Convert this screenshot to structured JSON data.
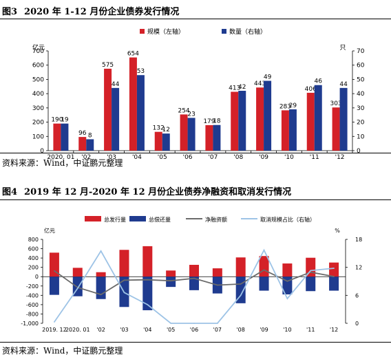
{
  "figure1": {
    "number": "图3",
    "title": "2020 年 1-12 月份企业债券发行情况",
    "source": "资料来源：Wind，中证鹏元整理"
  },
  "figure2": {
    "number": "图4",
    "title": "2019 年 12 月-2020 年 12 月份企业债券净融资和取消发行情况",
    "source": "资料来源：Wind，中证鹏元整理"
  },
  "colors": {
    "red": "#d42128",
    "navy": "#1f3b8f",
    "gray": "#6b6b6b",
    "lightblue": "#9dc3e6"
  },
  "chart_data": [
    {
      "type": "bar",
      "title": "",
      "categories": [
        "2020. 01",
        "'02",
        "'03",
        "'04",
        "'05",
        "'06",
        "'07",
        "'08",
        "'09",
        "'10",
        "'11",
        "'12"
      ],
      "series": [
        {
          "name": "规模（左轴）",
          "axis": "left",
          "color": "#d42128",
          "values": [
            190,
            96,
            575,
            654,
            132,
            254,
            179,
            413,
            443,
            283,
            406,
            303
          ],
          "labels": [
            "190",
            "96",
            "575",
            "654",
            "132",
            "254",
            "179",
            "413",
            "443",
            "283",
            "406",
            "303"
          ]
        },
        {
          "name": "数量（右轴）",
          "axis": "right",
          "color": "#1f3b8f",
          "values": [
            19,
            8,
            44,
            53,
            12,
            23,
            18,
            42,
            49,
            29,
            46,
            44
          ],
          "labels": [
            "19",
            "8",
            "44",
            "53",
            "12",
            "23",
            "18",
            "42",
            "49",
            "29",
            "46",
            "44"
          ]
        }
      ],
      "y_left": {
        "unit": "亿元",
        "ylim": [
          0,
          700
        ],
        "ticks": [
          "0",
          "100",
          "200",
          "300",
          "400",
          "500",
          "600",
          "700"
        ]
      },
      "y_right": {
        "unit": "只",
        "ylim": [
          0,
          70
        ],
        "ticks": [
          "0",
          "10",
          "20",
          "30",
          "40",
          "50",
          "60",
          "70"
        ]
      },
      "grid": false,
      "legend_position": "top"
    },
    {
      "type": "bar",
      "title": "",
      "categories": [
        "2019. 12",
        "2020. 01",
        "'02",
        "'03",
        "'04",
        "'05",
        "'06",
        "'07",
        "'08",
        "'09",
        "'10",
        "'11",
        "'12"
      ],
      "series": [
        {
          "name": "总发行量",
          "kind": "bar",
          "axis": "left",
          "color": "#d42128",
          "values": [
            515,
            190,
            96,
            575,
            654,
            132,
            254,
            179,
            413,
            443,
            283,
            406,
            303
          ]
        },
        {
          "name": "总偿还量",
          "kind": "bar",
          "axis": "left",
          "color": "#1f3b8f",
          "values": [
            -390,
            -420,
            -480,
            -650,
            -720,
            -220,
            -290,
            -360,
            -570,
            -300,
            -380,
            -310,
            -300
          ]
        },
        {
          "name": "净融资额",
          "kind": "line",
          "axis": "left",
          "color": "#6b6b6b",
          "values": [
            125,
            -230,
            -384,
            -75,
            -66,
            -88,
            -36,
            -181,
            -157,
            143,
            -97,
            96,
            3
          ]
        },
        {
          "name": "取消规模占比（右轴）",
          "kind": "line",
          "axis": "right",
          "color": "#9dc3e6",
          "values": [
            0.3,
            7.5,
            15.5,
            6.6,
            4.0,
            0,
            0,
            0,
            6.0,
            15.7,
            5.3,
            11.3,
            11.8
          ]
        }
      ],
      "y_left": {
        "unit": "亿元",
        "ylim": [
          -1000,
          800
        ],
        "ticks": [
          "-1,000",
          "-800",
          "-600",
          "-400",
          "-200",
          "0",
          "200",
          "400",
          "600",
          "800"
        ]
      },
      "y_right": {
        "unit": "%",
        "ylim": [
          0,
          18
        ],
        "ticks": [
          "0",
          "6",
          "12",
          "18"
        ]
      },
      "grid": false,
      "legend_position": "top"
    }
  ]
}
